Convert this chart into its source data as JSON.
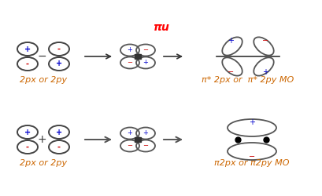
{
  "bg_color": "#ffffff",
  "top_label_color": "#ff0000",
  "mo_label_color": "#cc6600",
  "sign_color_plus": "#0000cc",
  "sign_color_minus": "#cc0000",
  "title": "π* 2px or  π* 2py MO",
  "title2": "π2px or π2py MO",
  "label1": "2px or 2py",
  "label2": "2px or 2py",
  "top_label": "πu"
}
